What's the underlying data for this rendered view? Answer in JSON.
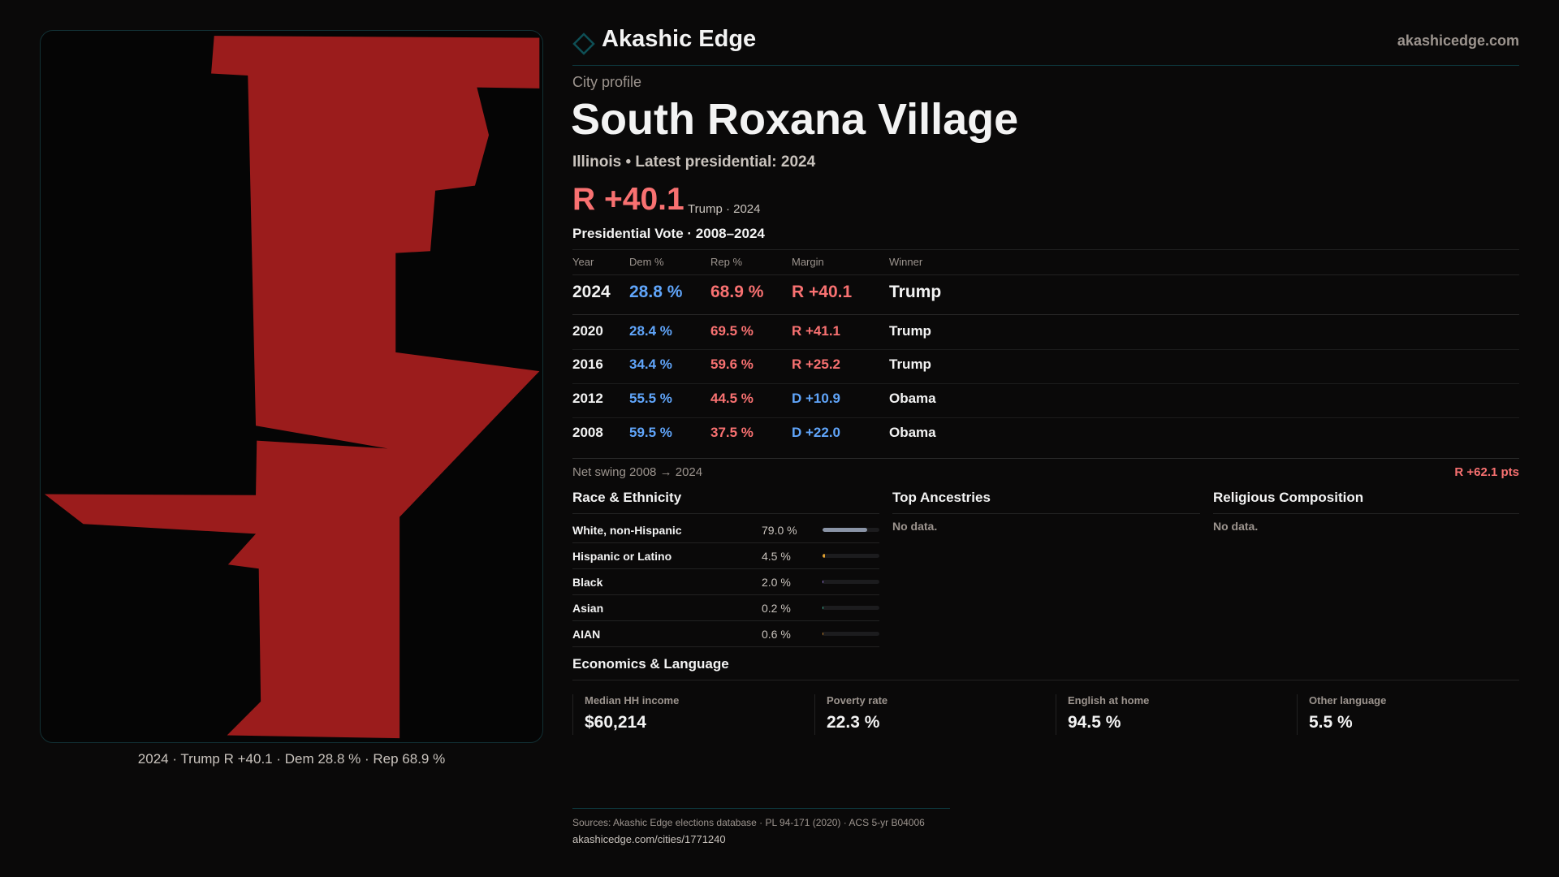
{
  "brand": {
    "name": "Akashic Edge",
    "domain": "akashicedge.com",
    "accent": "#0e4f55"
  },
  "profile": {
    "kicker": "City profile",
    "title": "South Roxana Village",
    "subtitle": "Illinois • Latest presidential: 2024",
    "margin": "R +40.1",
    "margin_note": "Trump · 2024"
  },
  "map": {
    "caption": "2024 · Trump R +40.1 · Dem 28.8 % · Rep 68.9 %",
    "fill": "#9b1c1c"
  },
  "votes": {
    "title": "Presidential Vote · 2008–2024",
    "headers": [
      "Year",
      "Dem %",
      "Rep %",
      "Margin",
      "Winner"
    ],
    "rows": [
      {
        "year": "2024",
        "dem": "28.8 %",
        "rep": "68.9 %",
        "margin": "R +40.1",
        "party": "R",
        "winner": "Trump"
      },
      {
        "year": "2020",
        "dem": "28.4 %",
        "rep": "69.5 %",
        "margin": "R +41.1",
        "party": "R",
        "winner": "Trump"
      },
      {
        "year": "2016",
        "dem": "34.4 %",
        "rep": "59.6 %",
        "margin": "R +25.2",
        "party": "R",
        "winner": "Trump"
      },
      {
        "year": "2012",
        "dem": "55.5 %",
        "rep": "44.5 %",
        "margin": "D +10.9",
        "party": "D",
        "winner": "Obama"
      },
      {
        "year": "2008",
        "dem": "59.5 %",
        "rep": "37.5 %",
        "margin": "D +22.0",
        "party": "D",
        "winner": "Obama"
      }
    ],
    "swing_label": "Net swing 2008 → 2024",
    "swing_value": "R +62.1 pts"
  },
  "race": {
    "title": "Race & Ethnicity",
    "rows": [
      {
        "name": "White, non-Hispanic",
        "value": "79.0 %",
        "pct": 79.0,
        "color": "#8a94a6"
      },
      {
        "name": "Hispanic or Latino",
        "value": "4.5 %",
        "pct": 4.5,
        "color": "#e0a030"
      },
      {
        "name": "Black",
        "value": "2.0 %",
        "pct": 2.0,
        "color": "#9b7be0"
      },
      {
        "name": "Asian",
        "value": "0.2 %",
        "pct": 0.2,
        "color": "#40c0a0"
      },
      {
        "name": "AIAN",
        "value": "0.6 %",
        "pct": 0.6,
        "color": "#d08a30"
      }
    ]
  },
  "ancestries": {
    "title": "Top Ancestries",
    "empty": "No data."
  },
  "religion": {
    "title": "Religious Composition",
    "empty": "No data."
  },
  "economics": {
    "title": "Economics & Language",
    "stats": [
      {
        "label": "Median HH income",
        "value": "$60,214"
      },
      {
        "label": "Poverty rate",
        "value": "22.3 %"
      },
      {
        "label": "English at home",
        "value": "94.5 %"
      },
      {
        "label": "Other language",
        "value": "5.5 %"
      }
    ]
  },
  "footer": {
    "sources": "Sources: Akashic Edge elections database · PL 94-171 (2020) · ACS 5-yr B04006",
    "url": "akashicedge.com/cities/1771240"
  }
}
